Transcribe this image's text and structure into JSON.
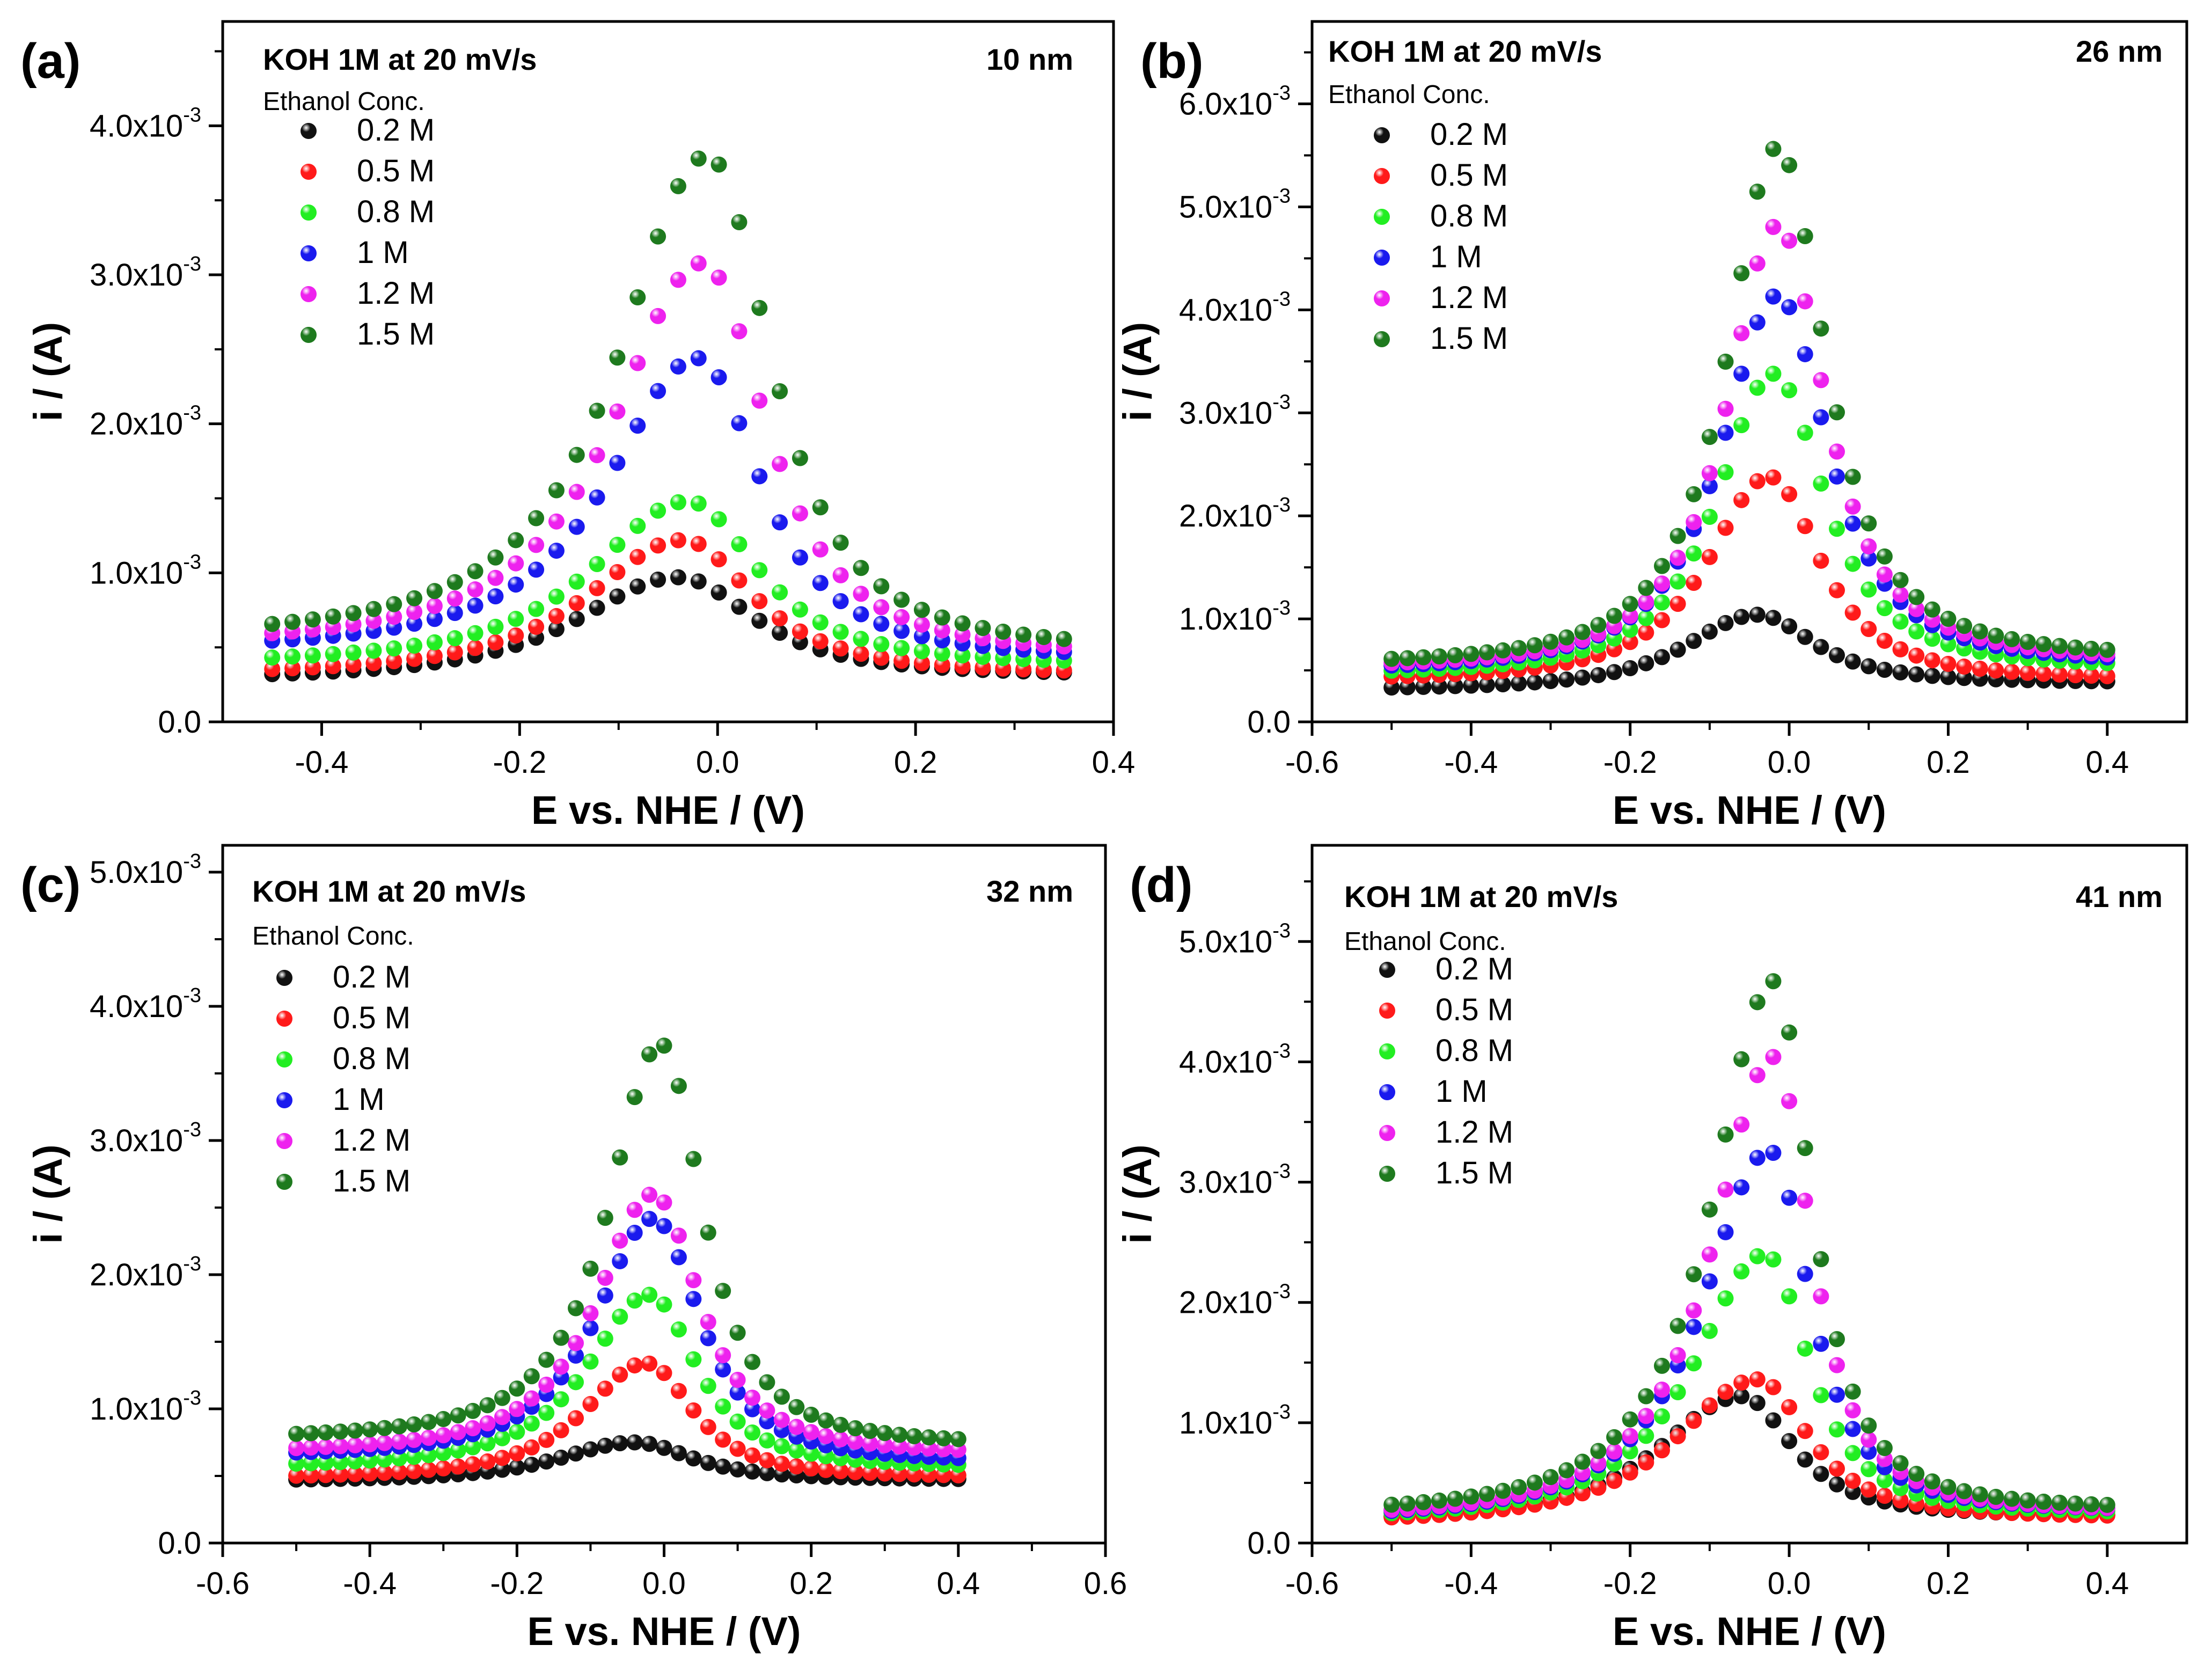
{
  "chart_data": [
    {
      "panel": "(a)",
      "type": "scatter",
      "title": "KOH 1M at 20 mV/s",
      "thickness": "10 nm",
      "legend_title": "Ethanol Conc.",
      "xlabel": "E vs. NHE / (V)",
      "ylabel": "i / (A)",
      "xlim": [
        -0.5,
        0.4
      ],
      "ylim": [
        0,
        0.0047
      ],
      "xticks": [
        -0.4,
        -0.2,
        0.0,
        0.2,
        0.4
      ],
      "xtick_labels": [
        "-0.4",
        "-0.2",
        "0.0",
        "0.2",
        "0.4"
      ],
      "yticks": [
        0,
        0.001,
        0.002,
        0.003,
        0.004
      ],
      "ytick_labels": [
        {
          "m": "0.0",
          "e": ""
        },
        {
          "m": "1.0x10",
          "e": "-3"
        },
        {
          "m": "2.0x10",
          "e": "-3"
        },
        {
          "m": "3.0x10",
          "e": "-3"
        },
        {
          "m": "4.0x10",
          "e": "-3"
        }
      ],
      "x_range": [
        -0.45,
        0.35
      ],
      "points": 40,
      "series": [
        {
          "name": "0.2 M",
          "color": "#111111",
          "peak": 0.00097,
          "center": -0.04,
          "base_left": 0.00028,
          "base_right": 0.00031,
          "wl": 0.16,
          "wr": 0.12
        },
        {
          "name": "0.5 M",
          "color": "#ff1a1a",
          "peak": 0.00122,
          "center": -0.035,
          "base_left": 0.00031,
          "base_right": 0.00032,
          "wl": 0.15,
          "wr": 0.11
        },
        {
          "name": "0.8 M",
          "color": "#22ee22",
          "peak": 0.00148,
          "center": -0.03,
          "base_left": 0.00038,
          "base_right": 0.00038,
          "wl": 0.15,
          "wr": 0.11
        },
        {
          "name": "1 M",
          "color": "#1a1aee",
          "peak": 0.00244,
          "center": -0.02,
          "base_left": 0.00047,
          "base_right": 0.00042,
          "wl": 0.14,
          "wr": 0.1
        },
        {
          "name": "1.2 M",
          "color": "#ee22ee",
          "peak": 0.00308,
          "center": -0.015,
          "base_left": 0.0005,
          "base_right": 0.00044,
          "wl": 0.14,
          "wr": 0.1
        },
        {
          "name": "1.5 M",
          "color": "#1e7a1e",
          "peak": 0.0038,
          "center": -0.01,
          "base_left": 0.00054,
          "base_right": 0.00047,
          "wl": 0.14,
          "wr": 0.1
        }
      ]
    },
    {
      "panel": "(b)",
      "type": "scatter",
      "title": "KOH 1M at 20 mV/s",
      "thickness": "26 nm",
      "legend_title": "Ethanol Conc.",
      "xlabel": "E vs. NHE / (V)",
      "ylabel": "i / (A)",
      "xlim": [
        -0.6,
        0.5
      ],
      "ylim": [
        0,
        0.0068
      ],
      "xticks": [
        -0.6,
        -0.4,
        -0.2,
        0.0,
        0.2,
        0.4
      ],
      "xtick_labels": [
        "-0.6",
        "-0.4",
        "-0.2",
        "0.0",
        "0.2",
        "0.4"
      ],
      "yticks": [
        0,
        0.001,
        0.002,
        0.003,
        0.004,
        0.005,
        0.006
      ],
      "ytick_labels": [
        {
          "m": "0.0",
          "e": ""
        },
        {
          "m": "1.0x10",
          "e": "-3"
        },
        {
          "m": "2.0x10",
          "e": "-3"
        },
        {
          "m": "3.0x10",
          "e": "-3"
        },
        {
          "m": "4.0x10",
          "e": "-3"
        },
        {
          "m": "5.0x10",
          "e": "-3"
        },
        {
          "m": "6.0x10",
          "e": "-3"
        }
      ],
      "x_range": [
        -0.5,
        0.4
      ],
      "points": 46,
      "series": [
        {
          "name": "0.2 M",
          "color": "#111111",
          "peak": 0.00104,
          "center": -0.04,
          "base_left": 0.00031,
          "base_right": 0.00038,
          "wl": 0.14,
          "wr": 0.11
        },
        {
          "name": "0.5 M",
          "color": "#ff1a1a",
          "peak": 0.00238,
          "center": -0.025,
          "base_left": 0.0004,
          "base_right": 0.00041,
          "wl": 0.12,
          "wr": 0.1
        },
        {
          "name": "0.8 M",
          "color": "#22ee22",
          "peak": 0.00338,
          "center": -0.02,
          "base_left": 0.00045,
          "base_right": 0.00052,
          "wl": 0.11,
          "wr": 0.1
        },
        {
          "name": "1 M",
          "color": "#1a1aee",
          "peak": 0.00414,
          "center": -0.015,
          "base_left": 0.00049,
          "base_right": 0.00056,
          "wl": 0.11,
          "wr": 0.1
        },
        {
          "name": "1.2 M",
          "color": "#ee22ee",
          "peak": 0.00482,
          "center": -0.015,
          "base_left": 0.00052,
          "base_right": 0.00059,
          "wl": 0.1,
          "wr": 0.095
        },
        {
          "name": "1.5 M",
          "color": "#1e7a1e",
          "peak": 0.00558,
          "center": -0.015,
          "base_left": 0.00055,
          "base_right": 0.00062,
          "wl": 0.1,
          "wr": 0.095
        }
      ]
    },
    {
      "panel": "(c)",
      "type": "scatter",
      "title": "KOH 1M at 20 mV/s",
      "thickness": "32 nm",
      "legend_title": "Ethanol Conc.",
      "xlabel": "E vs. NHE / (V)",
      "ylabel": "i / (A)",
      "xlim": [
        -0.6,
        0.6
      ],
      "ylim": [
        0,
        0.0052
      ],
      "xticks": [
        -0.6,
        -0.4,
        -0.2,
        0.0,
        0.2,
        0.4,
        0.6
      ],
      "xtick_labels": [
        "-0.6",
        "-0.4",
        "-0.2",
        "0.0",
        "0.2",
        "0.4",
        "0.6"
      ],
      "yticks": [
        0,
        0.001,
        0.002,
        0.003,
        0.004,
        0.005
      ],
      "ytick_labels": [
        {
          "m": "0.0",
          "e": ""
        },
        {
          "m": "1.0x10",
          "e": "-3"
        },
        {
          "m": "2.0x10",
          "e": "-3"
        },
        {
          "m": "3.0x10",
          "e": "-3"
        },
        {
          "m": "4.0x10",
          "e": "-3"
        },
        {
          "m": "5.0x10",
          "e": "-3"
        }
      ],
      "x_range": [
        -0.5,
        0.4
      ],
      "points": 46,
      "series": [
        {
          "name": "0.2 M",
          "color": "#111111",
          "peak": 0.00075,
          "center": -0.04,
          "base_left": 0.00046,
          "base_right": 0.00047,
          "wl": 0.16,
          "wr": 0.12
        },
        {
          "name": "0.5 M",
          "color": "#ff1a1a",
          "peak": 0.00134,
          "center": -0.025,
          "base_left": 0.00048,
          "base_right": 0.00049,
          "wl": 0.13,
          "wr": 0.1
        },
        {
          "name": "0.8 M",
          "color": "#22ee22",
          "peak": 0.00185,
          "center": -0.02,
          "base_left": 0.00056,
          "base_right": 0.00056,
          "wl": 0.13,
          "wr": 0.1
        },
        {
          "name": "1 M",
          "color": "#1a1aee",
          "peak": 0.00242,
          "center": -0.015,
          "base_left": 0.00064,
          "base_right": 0.0006,
          "wl": 0.12,
          "wr": 0.1
        },
        {
          "name": "1.2 M",
          "color": "#ee22ee",
          "peak": 0.0026,
          "center": -0.015,
          "base_left": 0.00067,
          "base_right": 0.00066,
          "wl": 0.12,
          "wr": 0.1
        },
        {
          "name": "1.5 M",
          "color": "#1e7a1e",
          "peak": 0.00372,
          "center": -0.005,
          "base_left": 0.00077,
          "base_right": 0.00073,
          "wl": 0.11,
          "wr": 0.09
        }
      ]
    },
    {
      "panel": "(d)",
      "type": "scatter",
      "title": "KOH 1M at 20 mV/s",
      "thickness": "41 nm",
      "legend_title": "Ethanol Conc.",
      "xlabel": "E vs. NHE / (V)",
      "ylabel": "i / (A)",
      "xlim": [
        -0.6,
        0.5
      ],
      "ylim": [
        0,
        0.0058
      ],
      "xticks": [
        -0.6,
        -0.4,
        -0.2,
        0.0,
        0.2,
        0.4
      ],
      "xtick_labels": [
        "-0.6",
        "-0.4",
        "-0.2",
        "0.0",
        "0.2",
        "0.4"
      ],
      "yticks": [
        0,
        0.001,
        0.002,
        0.003,
        0.004,
        0.005
      ],
      "ytick_labels": [
        {
          "m": "0.0",
          "e": ""
        },
        {
          "m": "1.0x10",
          "e": "-3"
        },
        {
          "m": "2.0x10",
          "e": "-3"
        },
        {
          "m": "3.0x10",
          "e": "-3"
        },
        {
          "m": "4.0x10",
          "e": "-3"
        },
        {
          "m": "5.0x10",
          "e": "-3"
        }
      ],
      "x_range": [
        -0.5,
        0.4
      ],
      "points": 46,
      "series": [
        {
          "name": "0.2 M",
          "color": "#111111",
          "peak": 0.00122,
          "center": -0.06,
          "base_left": 0.00017,
          "base_right": 0.00022,
          "wl": 0.16,
          "wr": 0.1
        },
        {
          "name": "0.5 M",
          "color": "#ff1a1a",
          "peak": 0.00136,
          "center": -0.04,
          "base_left": 0.00016,
          "base_right": 0.00021,
          "wl": 0.16,
          "wr": 0.1
        },
        {
          "name": "0.8 M",
          "color": "#22ee22",
          "peak": 0.0024,
          "center": -0.03,
          "base_left": 0.00018,
          "base_right": 0.00024,
          "wl": 0.14,
          "wr": 0.085
        },
        {
          "name": "1 M",
          "color": "#1a1aee",
          "peak": 0.00326,
          "center": -0.025,
          "base_left": 0.00019,
          "base_right": 0.00026,
          "wl": 0.13,
          "wr": 0.08
        },
        {
          "name": "1.2 M",
          "color": "#ee22ee",
          "peak": 0.00404,
          "center": -0.02,
          "base_left": 0.0002,
          "base_right": 0.00026,
          "wl": 0.12,
          "wr": 0.075
        },
        {
          "name": "1.5 M",
          "color": "#1e7a1e",
          "peak": 0.00467,
          "center": -0.02,
          "base_left": 0.00023,
          "base_right": 0.00028,
          "wl": 0.12,
          "wr": 0.075
        }
      ]
    }
  ]
}
